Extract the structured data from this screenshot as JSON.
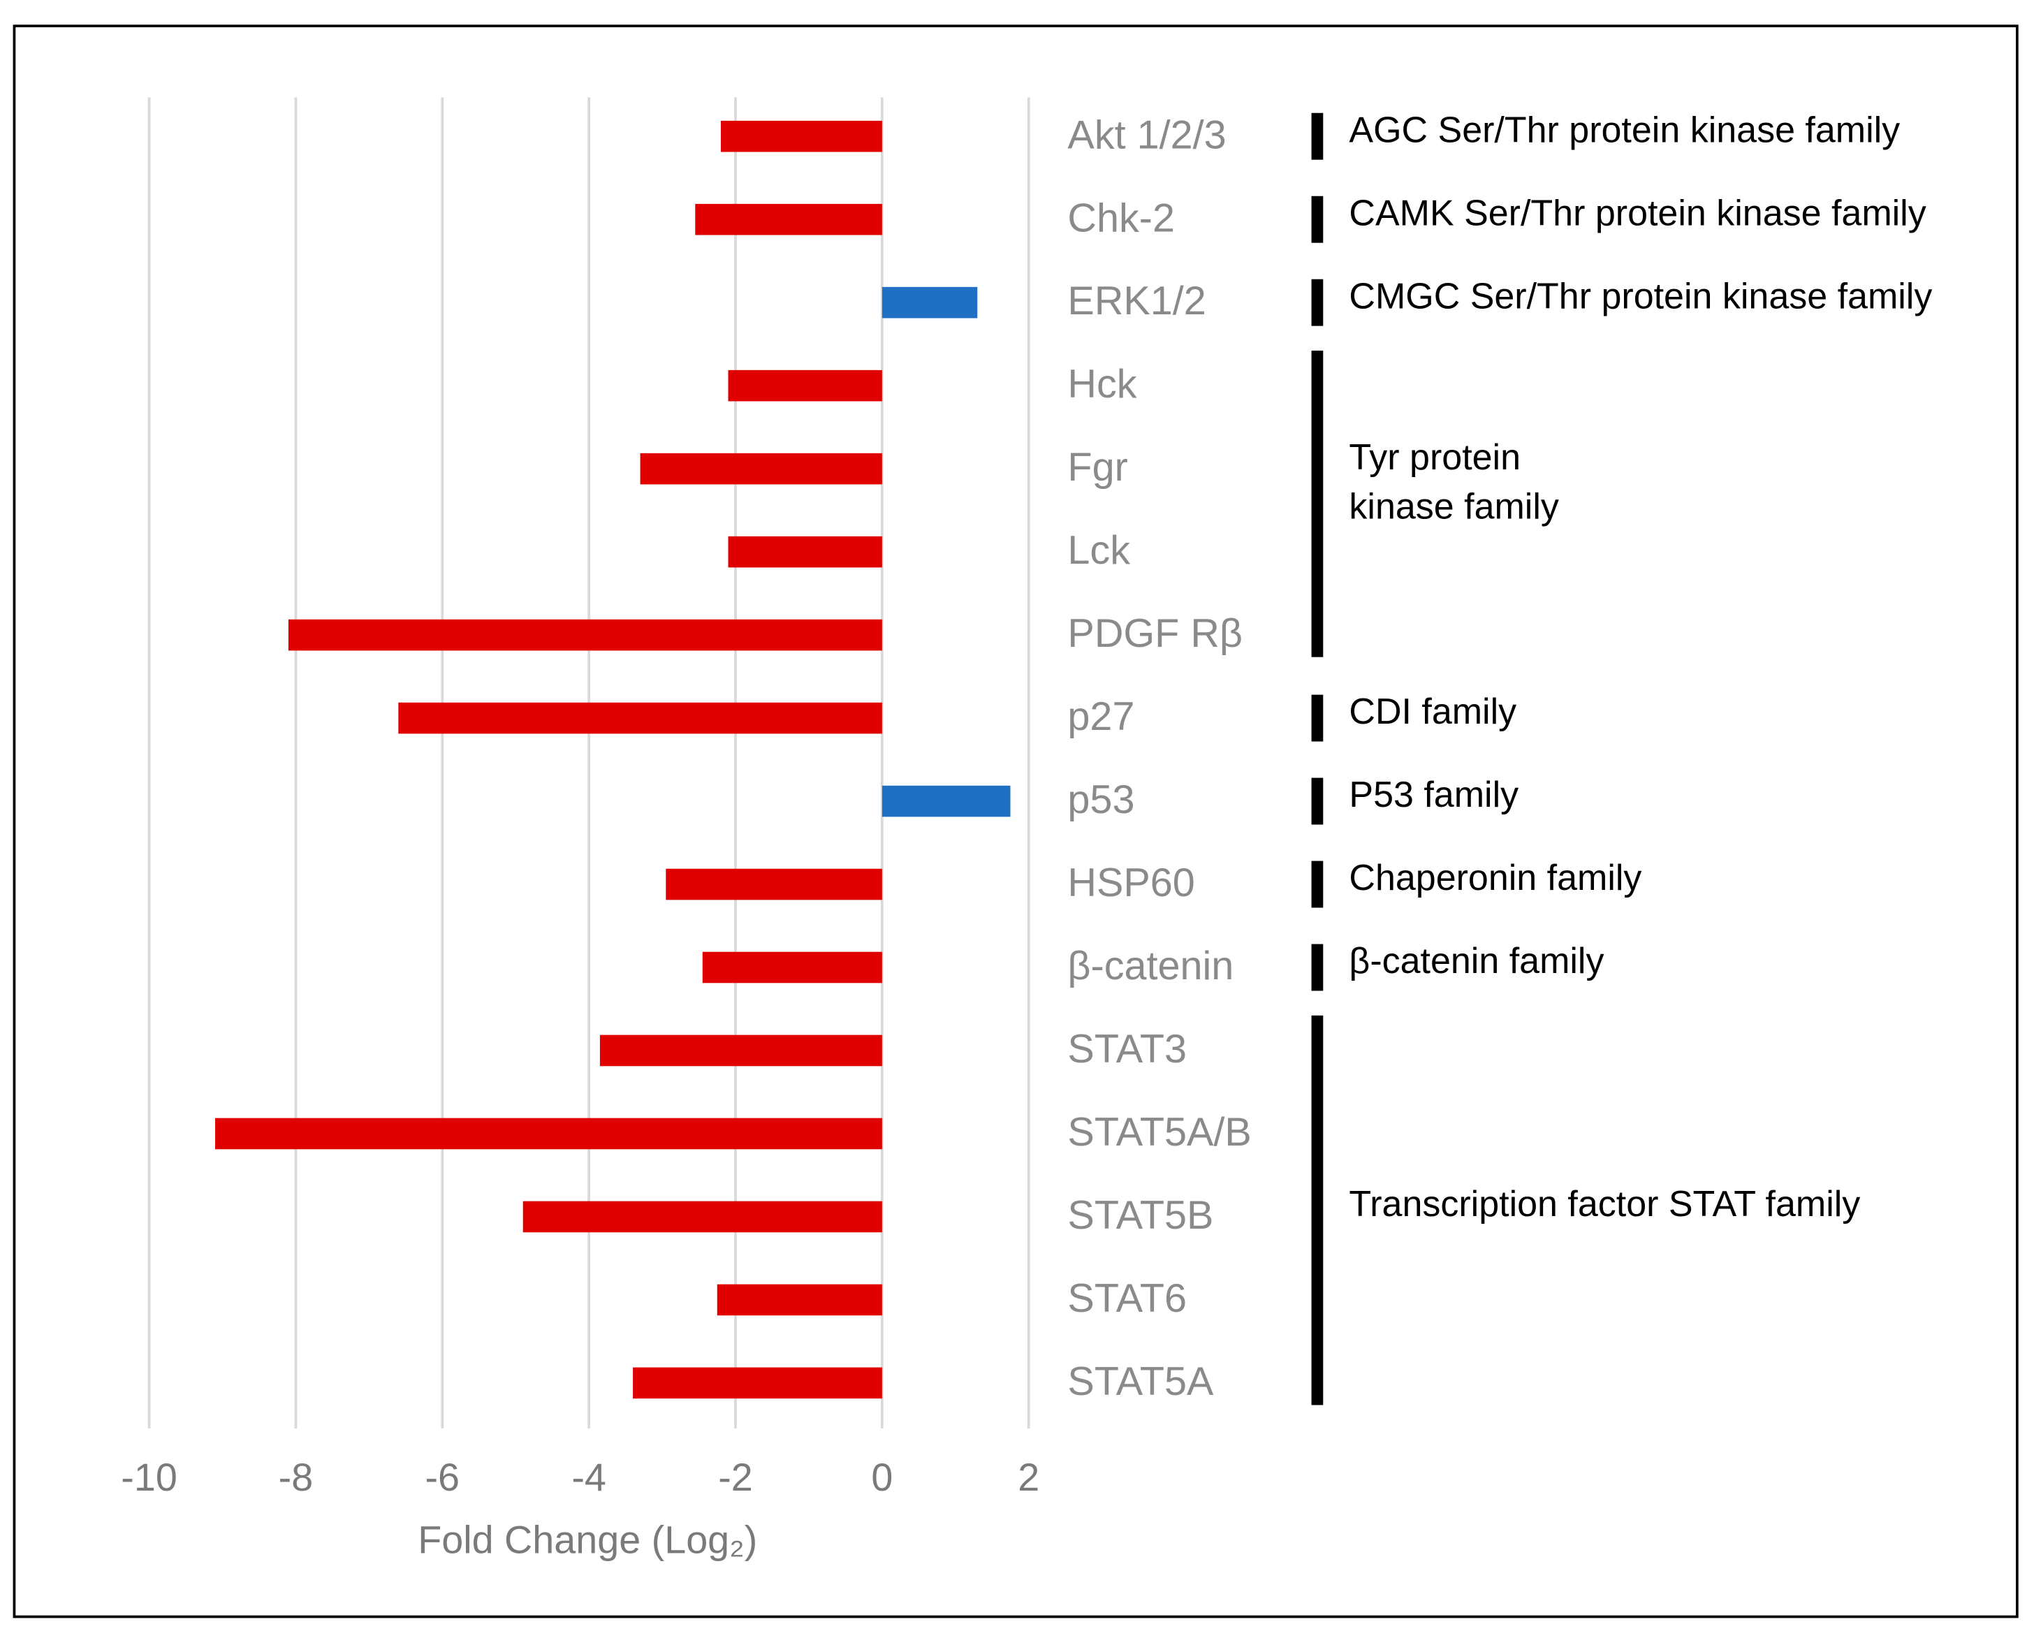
{
  "chart_data": {
    "type": "bar",
    "orientation": "horizontal",
    "x_label": "Fold Change (Log₂)",
    "categories": [
      "Akt 1/2/3",
      "Chk-2",
      "ERK1/2",
      "Hck",
      "Fgr",
      "Lck",
      "PDGF Rβ",
      "p27",
      "p53",
      "HSP60",
      "β-catenin",
      "STAT3",
      "STAT5A/B",
      "STAT5B",
      "STAT6",
      "STAT5A"
    ],
    "values": [
      -2.2,
      -2.55,
      1.3,
      -2.1,
      -3.3,
      -2.1,
      -8.1,
      -6.6,
      1.75,
      -2.95,
      -2.45,
      -3.85,
      -9.1,
      -4.9,
      -2.25,
      -3.4
    ],
    "colors": [
      "#e00000",
      "#e00000",
      "#1f6fc5",
      "#e00000",
      "#e00000",
      "#e00000",
      "#e00000",
      "#e00000",
      "#1f6fc5",
      "#e00000",
      "#e00000",
      "#e00000",
      "#e00000",
      "#e00000",
      "#e00000",
      "#e00000"
    ],
    "xlim": [
      -10,
      2
    ],
    "xticks": [
      -10,
      -8,
      -6,
      -4,
      -2,
      0,
      2
    ],
    "grid": true,
    "groups": [
      {
        "label": [
          "AGC Ser/Thr protein kinase family"
        ]
      },
      {
        "label": [
          "CAMK Ser/Thr protein kinase family"
        ]
      },
      {
        "label": [
          "CMGC Ser/Thr protein kinase family"
        ]
      },
      {
        "label": [
          "Tyr protein",
          "kinase family"
        ]
      },
      {
        "label": [
          "CDI family"
        ]
      },
      {
        "label": [
          "P53 family"
        ]
      },
      {
        "label": [
          "Chaperonin family"
        ]
      },
      {
        "label": [
          "β-catenin family"
        ]
      },
      {
        "label": [
          "Transcription factor STAT family"
        ]
      }
    ]
  }
}
